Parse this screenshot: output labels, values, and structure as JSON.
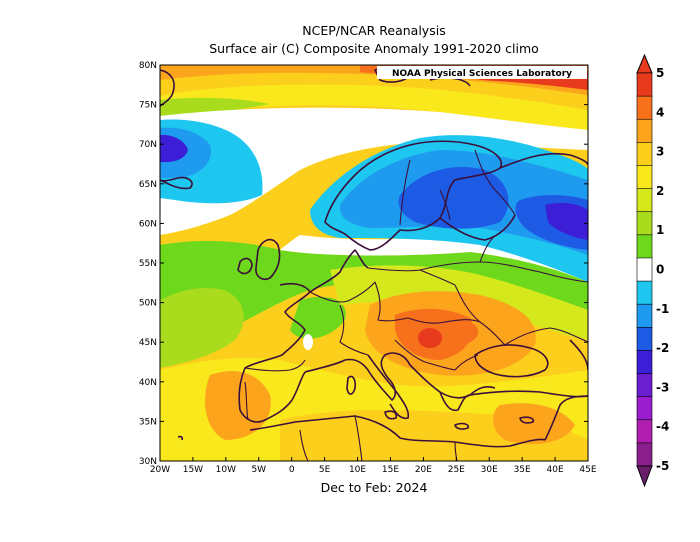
{
  "titles": {
    "line1": "NCEP/NCAR Reanalysis",
    "line2": "Surface air (C) Composite Anomaly 1991-2020 climo",
    "bottom": "Dec to Feb: 2024"
  },
  "credit": "NOAA Physical Sciences Laboratory",
  "map": {
    "lon_range": [
      -20,
      45
    ],
    "lat_range": [
      30,
      80
    ],
    "lon_ticks": [
      "20W",
      "15W",
      "10W",
      "5W",
      "0",
      "5E",
      "10E",
      "15E",
      "20E",
      "25E",
      "30E",
      "35E",
      "40E",
      "45E"
    ],
    "lat_ticks": [
      "80N",
      "75N",
      "70N",
      "65N",
      "60N",
      "55N",
      "50N",
      "45N",
      "40N",
      "35N",
      "30N"
    ]
  },
  "colorbar": {
    "labels": [
      "5",
      "4",
      "3",
      "2",
      "1",
      "0",
      "-1",
      "-2",
      "-3",
      "-4",
      "-5"
    ],
    "colors": {
      "p45": "#e83a1c",
      "p4": "#f7701c",
      "p35": "#fba41c",
      "p3": "#fbcf1c",
      "p25": "#f8e81c",
      "p2": "#d4e81c",
      "p15": "#a8dc1c",
      "p1": "#6ed81c",
      "zero": "#ffffff",
      "m1": "#1ec7ef",
      "m15": "#1e9bef",
      "m2": "#1e5be5",
      "m25": "#3b1ed6",
      "m3": "#6a1ecf",
      "m35": "#9a1ecf",
      "m4": "#b01eb0",
      "m45": "#8a1e8a",
      "m5": "#6a1e6a"
    }
  }
}
